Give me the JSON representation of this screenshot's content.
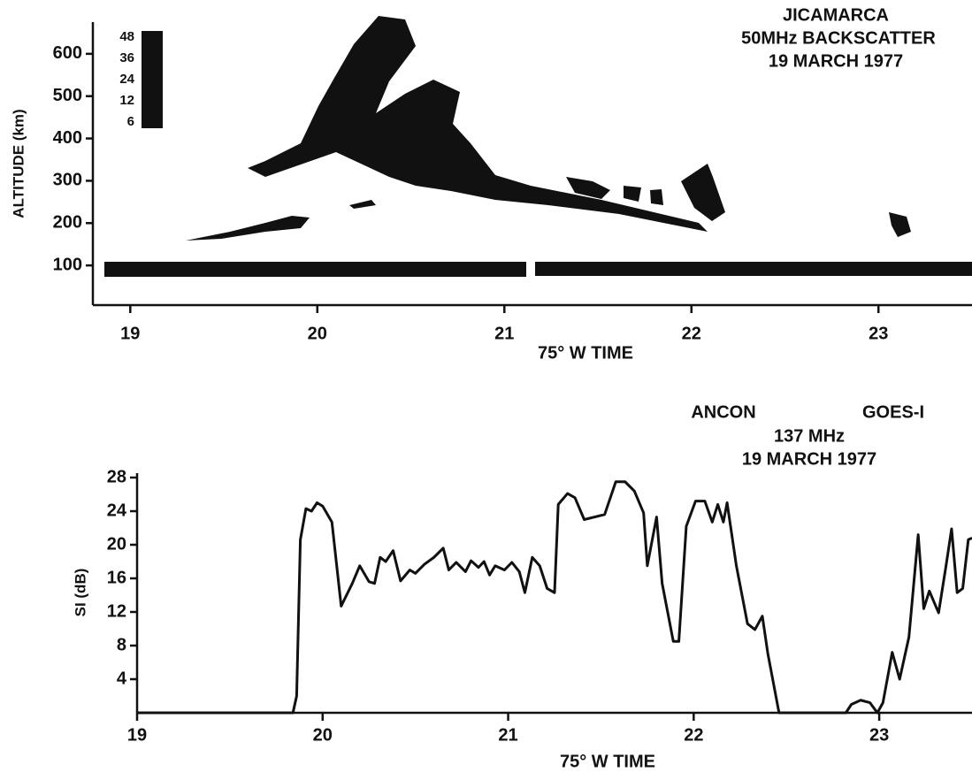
{
  "chart_data": [
    {
      "type": "heatmap",
      "title": "JICAMARCA",
      "subtitle": "50MHz BACKSCATTER",
      "date": "19 MARCH 1977",
      "xlabel": "75° W TIME",
      "ylabel": "ALTITUDE (km)",
      "xlim": [
        18.8,
        23.5
      ],
      "xticks": [
        19,
        20,
        21,
        22,
        23
      ],
      "ylim": [
        0,
        700
      ],
      "yticks": [
        100,
        200,
        300,
        400,
        500,
        600
      ],
      "legend_levels": [
        48,
        36,
        24,
        12,
        6
      ]
    },
    {
      "type": "line",
      "title": "ANCON",
      "satellite": "GOES-I",
      "subtitle": "137 MHz",
      "date": "19 MARCH 1977",
      "xlabel": "75° W TIME",
      "ylabel": "SI (dB)",
      "xlim": [
        19,
        23.5
      ],
      "xticks": [
        19,
        20,
        21,
        22,
        23
      ],
      "ylim": [
        0,
        28
      ],
      "yticks": [
        4,
        8,
        12,
        16,
        20,
        24,
        28
      ],
      "color": "#111111",
      "x": [
        19,
        19.84,
        19.86,
        19.88,
        19.91,
        19.94,
        19.97,
        20.0,
        20.05,
        20.1,
        20.16,
        20.2,
        20.25,
        20.28,
        20.31,
        20.34,
        20.38,
        20.42,
        20.47,
        20.5,
        20.55,
        20.6,
        20.65,
        20.68,
        20.72,
        20.77,
        20.8,
        20.84,
        20.87,
        20.9,
        20.93,
        20.98,
        21.02,
        21.06,
        21.09,
        21.13,
        21.17,
        21.21,
        21.25,
        21.27,
        21.32,
        21.36,
        21.41,
        21.52,
        21.58,
        21.63,
        21.68,
        21.73,
        21.75,
        21.8,
        21.83,
        21.89,
        21.92,
        21.96,
        22.01,
        22.06,
        22.1,
        22.13,
        22.16,
        22.18,
        22.23,
        22.29,
        22.33,
        22.37,
        22.4,
        22.46,
        22.82,
        22.85,
        22.9,
        22.95,
        22.99,
        23.02,
        23.07,
        23.11,
        23.16,
        23.21,
        23.24,
        23.27,
        23.32,
        23.36,
        23.39,
        23.42,
        23.45,
        23.48,
        23.5
      ],
      "values": [
        0,
        0,
        2,
        20.6,
        24.3,
        24,
        25,
        24.6,
        22.7,
        12.7,
        15.4,
        17.5,
        15.6,
        15.4,
        18.5,
        18,
        19.3,
        15.7,
        17,
        16.6,
        17.7,
        18.5,
        19.6,
        17,
        17.9,
        16.8,
        18.1,
        17.3,
        18,
        16.4,
        17.5,
        17,
        17.9,
        16.8,
        14.3,
        18.5,
        17.5,
        14.8,
        14.3,
        24.8,
        26.1,
        25.6,
        23,
        23.6,
        27.5,
        27.5,
        26.4,
        23.8,
        17.5,
        23.3,
        15.4,
        8.5,
        8.5,
        22.2,
        25.2,
        25.2,
        22.7,
        24.8,
        22.7,
        25,
        17.5,
        10.6,
        9.9,
        11.5,
        7,
        0,
        0,
        1,
        1.5,
        1.2,
        0,
        1.2,
        7.2,
        4,
        9,
        21.2,
        12.4,
        14.5,
        11.9,
        17.5,
        21.9,
        14.3,
        14.8,
        20.6,
        20.8
      ]
    }
  ]
}
